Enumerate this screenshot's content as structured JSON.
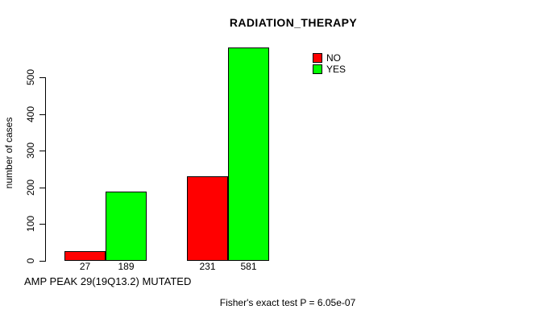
{
  "chart_data": {
    "type": "bar",
    "title": "RADIATION_THERAPY",
    "ylabel": "number of cases",
    "xlabel": "AMP PEAK 29(19Q13.2) MUTATED",
    "annotation": "Fisher's exact test P = 6.05e-07",
    "yticks": [
      0,
      100,
      200,
      300,
      400,
      500
    ],
    "ylim": [
      0,
      600
    ],
    "grid": false,
    "legend_position": "top-right",
    "categories": [
      "",
      ""
    ],
    "series": [
      {
        "name": "NO",
        "color": "#ff0000",
        "values": [
          27,
          231
        ]
      },
      {
        "name": "YES",
        "color": "#00ff00",
        "values": [
          189,
          581
        ]
      }
    ]
  },
  "colors": {
    "background": "#ffffff",
    "axis": "#000000",
    "no": "#ff0000",
    "yes": "#00ff00"
  }
}
